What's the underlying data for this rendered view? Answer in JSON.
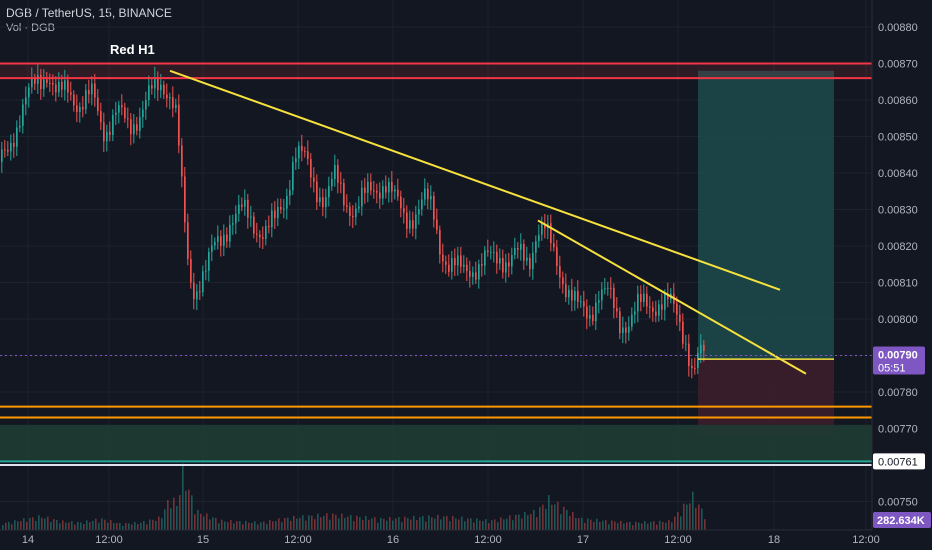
{
  "header": {
    "symbol_line": "DGB / TetherUS, 15, BINANCE",
    "volume_line": "Vol · DGB"
  },
  "colors": {
    "background": "#131722",
    "up": "#26a69a",
    "down": "#ef5350",
    "trendline": "#f7e13e",
    "resistance": "#f23645",
    "support": "#ff9800",
    "support_band": "#26a69a",
    "price_badge": "#7e57c2",
    "target_zone": "#1d4b4b",
    "stop_zone": "#3b1e2a"
  },
  "chart_data": {
    "type": "candlestick",
    "symbol": "DGB / TetherUS",
    "interval": "15",
    "exchange": "BINANCE",
    "x_ticks": [
      "14",
      "12:00",
      "15",
      "12:00",
      "16",
      "12:00",
      "17",
      "12:00",
      "18",
      "12:00"
    ],
    "y_ticks": [
      "0.00880",
      "0.00870",
      "0.00860",
      "0.00850",
      "0.00840",
      "0.00830",
      "0.00820",
      "0.00810",
      "0.00800",
      "0.00790",
      "0.00780",
      "0.00770",
      "0.00750"
    ],
    "ylim": [
      0.00744,
      0.00884
    ],
    "last_price": "0.00790",
    "countdown": "05:51",
    "support_label": "0.00761",
    "volume_label": "282.634K",
    "annotation": "Red  H1",
    "close_path": [
      [
        0,
        0.00843
      ],
      [
        12,
        0.00851
      ],
      [
        24,
        0.00858
      ],
      [
        36,
        0.00866
      ],
      [
        46,
        0.00868
      ],
      [
        56,
        0.0086
      ],
      [
        68,
        0.00864
      ],
      [
        80,
        0.00858
      ],
      [
        92,
        0.00861
      ],
      [
        104,
        0.00852
      ],
      [
        116,
        0.00856
      ],
      [
        128,
        0.00853
      ],
      [
        140,
        0.00857
      ],
      [
        152,
        0.00862
      ],
      [
        162,
        0.00865
      ],
      [
        170,
        0.00862
      ],
      [
        176,
        0.00855
      ],
      [
        180,
        0.00838
      ],
      [
        184,
        0.00825
      ],
      [
        188,
        0.00812
      ],
      [
        194,
        0.00808
      ],
      [
        200,
        0.00812
      ],
      [
        206,
        0.00814
      ],
      [
        212,
        0.00818
      ],
      [
        220,
        0.00822
      ],
      [
        230,
        0.00828
      ],
      [
        242,
        0.00829
      ],
      [
        254,
        0.00826
      ],
      [
        264,
        0.00824
      ],
      [
        274,
        0.00826
      ],
      [
        284,
        0.00833
      ],
      [
        294,
        0.00846
      ],
      [
        304,
        0.00843
      ],
      [
        314,
        0.00837
      ],
      [
        324,
        0.00833
      ],
      [
        334,
        0.00838
      ],
      [
        344,
        0.00833
      ],
      [
        354,
        0.0083
      ],
      [
        364,
        0.00833
      ],
      [
        374,
        0.00836
      ],
      [
        384,
        0.00838
      ],
      [
        394,
        0.00832
      ],
      [
        404,
        0.00828
      ],
      [
        414,
        0.00829
      ],
      [
        424,
        0.00832
      ],
      [
        432,
        0.0083
      ],
      [
        440,
        0.0082
      ],
      [
        448,
        0.00814
      ],
      [
        458,
        0.00813
      ],
      [
        468,
        0.00815
      ],
      [
        478,
        0.00814
      ],
      [
        488,
        0.00816
      ],
      [
        498,
        0.00818
      ],
      [
        508,
        0.00816
      ],
      [
        518,
        0.00817
      ],
      [
        528,
        0.00816
      ],
      [
        536,
        0.00825
      ],
      [
        544,
        0.00824
      ],
      [
        552,
        0.00818
      ],
      [
        560,
        0.00813
      ],
      [
        568,
        0.00808
      ],
      [
        578,
        0.00802
      ],
      [
        588,
        0.00801
      ],
      [
        598,
        0.00808
      ],
      [
        608,
        0.00806
      ],
      [
        618,
        0.00799
      ],
      [
        628,
        0.008
      ],
      [
        638,
        0.00803
      ],
      [
        648,
        0.00804
      ],
      [
        658,
        0.00805
      ],
      [
        668,
        0.00804
      ],
      [
        678,
        0.008
      ],
      [
        686,
        0.00794
      ],
      [
        692,
        0.00785
      ],
      [
        698,
        0.00789
      ],
      [
        704,
        0.0079
      ]
    ],
    "volume_path": [
      [
        0,
        0.1
      ],
      [
        20,
        0.16
      ],
      [
        40,
        0.22
      ],
      [
        60,
        0.14
      ],
      [
        80,
        0.12
      ],
      [
        100,
        0.18
      ],
      [
        120,
        0.1
      ],
      [
        140,
        0.12
      ],
      [
        160,
        0.2
      ],
      [
        170,
        0.55
      ],
      [
        176,
        0.4
      ],
      [
        182,
        0.95
      ],
      [
        188,
        0.65
      ],
      [
        196,
        0.3
      ],
      [
        220,
        0.15
      ],
      [
        260,
        0.12
      ],
      [
        290,
        0.2
      ],
      [
        330,
        0.25
      ],
      [
        380,
        0.18
      ],
      [
        440,
        0.22
      ],
      [
        490,
        0.15
      ],
      [
        536,
        0.3
      ],
      [
        548,
        0.5
      ],
      [
        580,
        0.18
      ],
      [
        630,
        0.12
      ],
      [
        670,
        0.14
      ],
      [
        692,
        0.55
      ],
      [
        704,
        0.25
      ]
    ],
    "trendlines": [
      {
        "from": [
          170,
          0.00868
        ],
        "to": [
          780,
          0.00808
        ]
      },
      {
        "from": [
          538,
          0.00827
        ],
        "to": [
          806,
          0.00785
        ]
      }
    ],
    "horizontal_levels": [
      {
        "price": 0.0087,
        "color": "resistance",
        "x_from": 0
      },
      {
        "price": 0.00866,
        "color": "resistance",
        "x_from": 0
      },
      {
        "price": 0.00776,
        "color": "support",
        "x_from": 0
      },
      {
        "price": 0.00773,
        "color": "support",
        "x_from": 0
      },
      {
        "price": 0.00761,
        "color": "support_band",
        "x_from": 0
      },
      {
        "price": 0.0076,
        "color": "white",
        "x_from": 0
      }
    ],
    "support_band_range": [
      0.00761,
      0.00771
    ],
    "position": {
      "x_from": 698,
      "x_to": 834,
      "entry": 0.00789,
      "target": 0.00868,
      "stop": 0.00768
    },
    "grid": true
  }
}
